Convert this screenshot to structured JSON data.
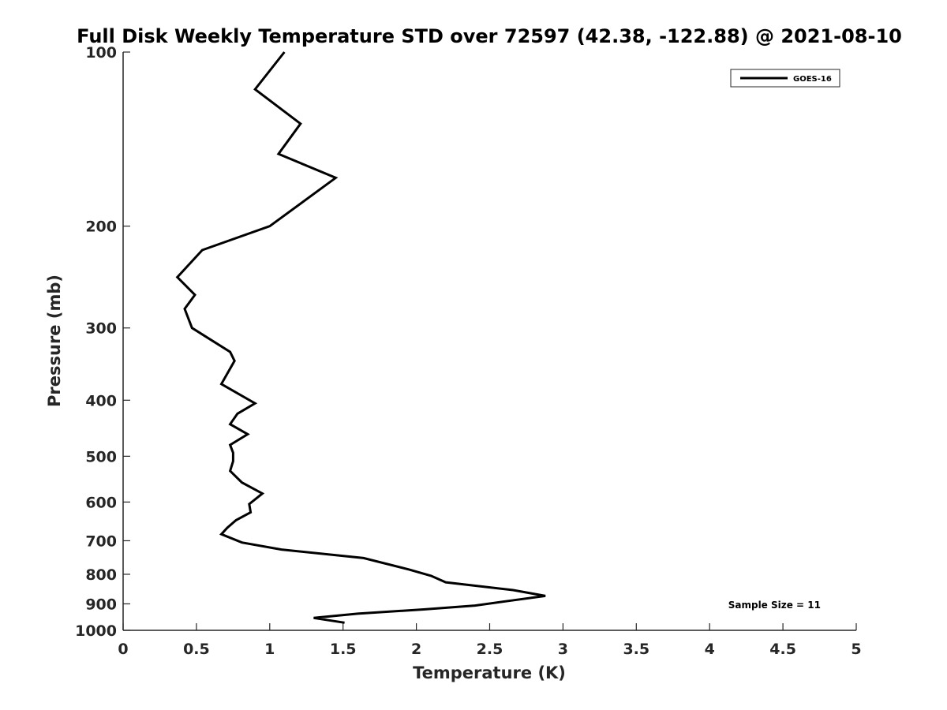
{
  "chart_data": {
    "type": "line",
    "title": "Full Disk Weekly Temperature STD over 72597 (42.38, -122.88) @ 2021-08-10",
    "xlabel": "Temperature (K)",
    "ylabel": "Pressure (mb)",
    "xlim": [
      0,
      5
    ],
    "ylim": [
      100,
      1000
    ],
    "y_scale": "log",
    "y_reversed": true,
    "grid": false,
    "legend_position": "top-right",
    "x_ticks": [
      "0",
      "0.5",
      "1",
      "1.5",
      "2",
      "2.5",
      "3",
      "3.5",
      "4",
      "4.5",
      "5"
    ],
    "y_ticks": [
      "100",
      "200",
      "300",
      "400",
      "500",
      "600",
      "700",
      "800",
      "900",
      "1000"
    ],
    "series": [
      {
        "name": "GOES-16",
        "color": "#000000",
        "x": [
          1.1,
          0.9,
          1.21,
          1.06,
          1.45,
          1.0,
          0.54,
          0.37,
          0.49,
          0.42,
          0.47,
          0.73,
          0.76,
          0.67,
          0.9,
          0.78,
          0.73,
          0.85,
          0.73,
          0.75,
          0.75,
          0.73,
          0.81,
          0.95,
          0.86,
          0.87,
          0.77,
          0.71,
          0.67,
          0.81,
          1.08,
          1.64,
          1.95,
          2.1,
          2.2,
          2.66,
          2.88,
          2.65,
          2.4,
          2.05,
          1.6,
          1.3,
          1.51
        ],
        "y": [
          100,
          116,
          133,
          150,
          165,
          200,
          220,
          245,
          263,
          278,
          300,
          330,
          342,
          375,
          405,
          422,
          440,
          458,
          478,
          493,
          510,
          530,
          555,
          580,
          605,
          625,
          645,
          665,
          682,
          705,
          725,
          750,
          785,
          805,
          826,
          852,
          872,
          888,
          906,
          920,
          936,
          952,
          970
        ]
      }
    ],
    "annotation": "Sample Size = 11"
  }
}
